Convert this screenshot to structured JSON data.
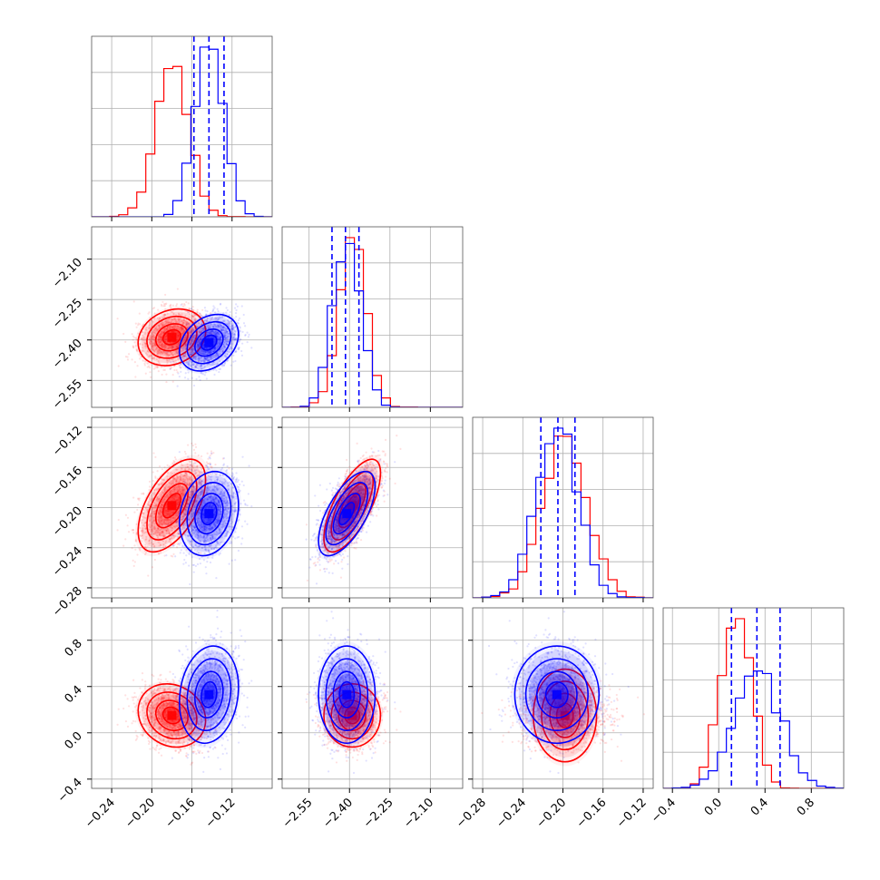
{
  "colors": {
    "red": "#ff0000",
    "blue": "#0000ff",
    "grid": "#b0b0b0",
    "frame": "#000000"
  },
  "chart_data": {
    "type": "corner",
    "grid": true,
    "params": [
      {
        "range": [
          -0.26,
          -0.08
        ],
        "ticks": [
          -0.24,
          -0.2,
          -0.16,
          -0.12
        ],
        "tick_labels": [
          "−0.24",
          "−0.20",
          "−0.16",
          "−0.12"
        ]
      },
      {
        "range": [
          -2.65,
          -1.98
        ],
        "ticks": [
          -2.55,
          -2.4,
          -2.25,
          -2.1
        ],
        "tick_labels": [
          "−2.55",
          "−2.40",
          "−2.25",
          "−2.10"
        ]
      },
      {
        "range": [
          -0.29,
          -0.11
        ],
        "ticks": [
          -0.28,
          -0.24,
          -0.2,
          -0.16,
          -0.12
        ],
        "tick_labels": [
          "−0.28",
          "−0.24",
          "−0.20",
          "−0.16",
          "−0.12"
        ]
      },
      {
        "range": [
          -0.48,
          1.08
        ],
        "ticks": [
          -0.4,
          0.0,
          0.4,
          0.8
        ],
        "tick_labels": [
          "−0.4",
          "0.0",
          "0.4",
          "0.8"
        ]
      }
    ],
    "quantiles_blue": [
      [
        -0.158,
        -0.143,
        -0.128
      ],
      [
        -2.465,
        -2.415,
        -2.365
      ],
      [
        -0.222,
        -0.205,
        -0.188
      ],
      [
        0.11,
        0.33,
        0.53
      ]
    ],
    "series": [
      {
        "name": "",
        "color": "#ff0000",
        "mean": [
          -0.18,
          -2.39,
          -0.198,
          0.15
        ],
        "sd": [
          0.016,
          0.05,
          0.022,
          0.13
        ],
        "corr": [
          [
            1,
            0.2,
            0.55,
            -0.15
          ],
          [
            0.2,
            1,
            0.7,
            0.0
          ],
          [
            0.55,
            0.7,
            1,
            0.0
          ],
          [
            -0.15,
            0.0,
            0.0,
            1
          ]
        ]
      },
      {
        "name": "",
        "color": "#0000ff",
        "mean": [
          -0.143,
          -2.41,
          -0.206,
          0.33
        ],
        "sd": [
          0.014,
          0.05,
          0.02,
          0.2
        ],
        "corr": [
          [
            1,
            0.3,
            0.2,
            0.15
          ],
          [
            0.3,
            1,
            0.65,
            0.0
          ],
          [
            0.2,
            0.65,
            1,
            0.0
          ],
          [
            0.15,
            0.0,
            0.0,
            1
          ]
        ]
      }
    ]
  }
}
